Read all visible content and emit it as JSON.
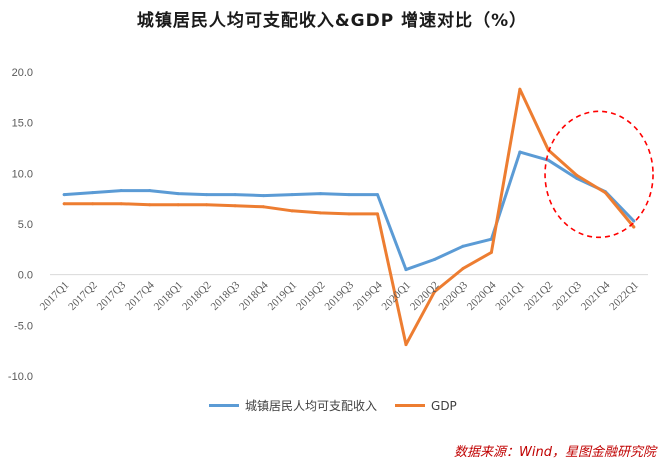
{
  "title": "城镇居民人均可支配收入&GDP 增速对比（%）",
  "source": "数据来源：Wind，星图金融研究院",
  "chart_data": {
    "type": "line",
    "title": "城镇居民人均可支配收入&GDP 增速对比（%）",
    "xlabel": "",
    "ylabel": "",
    "ylim": [
      -10,
      20
    ],
    "yticks": [
      "20.0",
      "15.0",
      "10.0",
      "5.0",
      "0.0",
      "-5.0",
      "-10.0"
    ],
    "grid": false,
    "legend": "bottom",
    "categories": [
      "2017Q1",
      "2017Q2",
      "2017Q3",
      "2017Q4",
      "2018Q1",
      "2018Q2",
      "2018Q3",
      "2018Q4",
      "2019Q1",
      "2019Q2",
      "2019Q3",
      "2019Q4",
      "2020Q1",
      "2020Q2",
      "2020Q3",
      "2020Q4",
      "2021Q1",
      "2021Q2",
      "2021Q3",
      "2021Q4",
      "2022Q1"
    ],
    "series": [
      {
        "name": "城镇居民人均可支配收入",
        "color": "#5b9bd5",
        "values": [
          7.9,
          8.1,
          8.3,
          8.3,
          8.0,
          7.9,
          7.9,
          7.8,
          7.9,
          8.0,
          7.9,
          7.9,
          0.5,
          1.5,
          2.8,
          3.5,
          12.1,
          11.3,
          9.5,
          8.2,
          5.3
        ]
      },
      {
        "name": "GDP",
        "color": "#ed7d31",
        "values": [
          7.0,
          7.0,
          7.0,
          6.9,
          6.9,
          6.9,
          6.8,
          6.7,
          6.3,
          6.1,
          6.0,
          6.0,
          -6.9,
          -1.7,
          0.6,
          2.2,
          18.3,
          12.3,
          9.8,
          8.1,
          4.7
        ]
      }
    ],
    "annotation": {
      "shape": "dashed-ellipse",
      "color": "#ff0000"
    }
  }
}
